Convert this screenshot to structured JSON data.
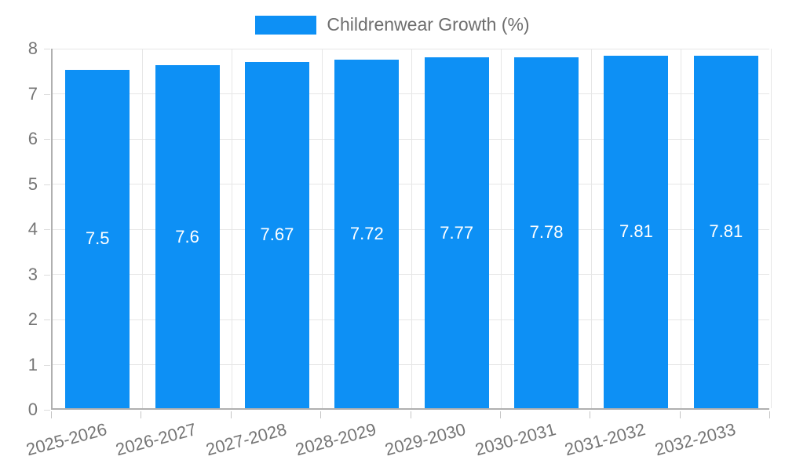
{
  "chart_data": {
    "type": "bar",
    "title": "",
    "legend": {
      "position": "top",
      "items": [
        {
          "label": "Childrenwear Growth (%)",
          "color": "#0d90f5"
        }
      ]
    },
    "categories": [
      "2025-2026",
      "2026-2027",
      "2027-2028",
      "2028-2029",
      "2029-2030",
      "2030-2031",
      "2031-2032",
      "2032-2033"
    ],
    "series": [
      {
        "name": "Childrenwear Growth (%)",
        "values": [
          7.5,
          7.6,
          7.67,
          7.72,
          7.77,
          7.78,
          7.81,
          7.81
        ]
      }
    ],
    "value_labels": [
      "7.5",
      "7.6",
      "7.67",
      "7.72",
      "7.77",
      "7.78",
      "7.81",
      "7.81"
    ],
    "xlabel": "",
    "ylabel": "",
    "ylim": [
      0,
      8
    ],
    "y_ticks": [
      0,
      1,
      2,
      3,
      4,
      5,
      6,
      7,
      8
    ],
    "grid": true,
    "value_label_position": "center",
    "colors": {
      "bar": "#0d90f5",
      "axis_line": "#b0b0b0",
      "gridline": "#e6e6e6",
      "tick_label": "#757575",
      "legend_text": "#6e6e6e",
      "value_label": "#ffffff",
      "background": "#ffffff"
    }
  }
}
